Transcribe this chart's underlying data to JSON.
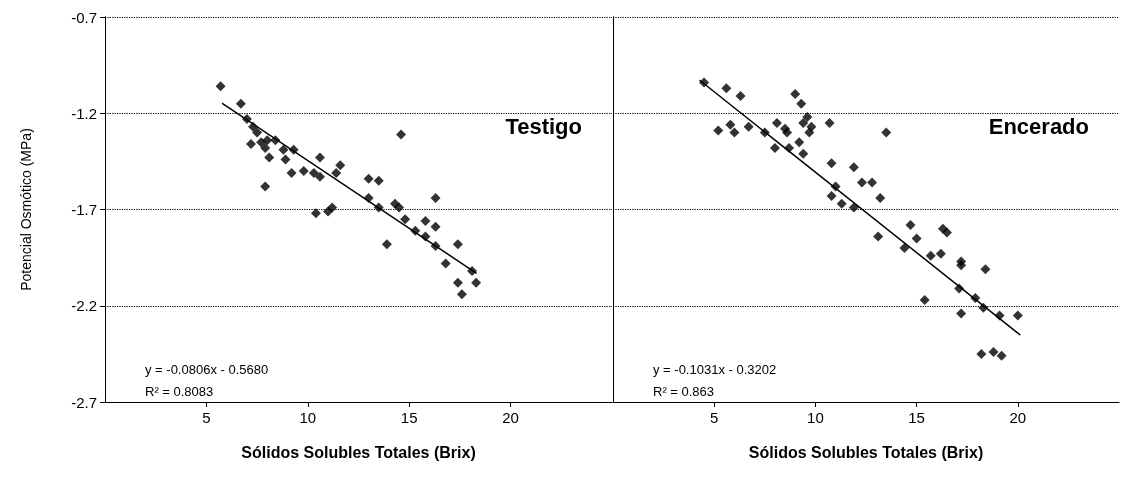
{
  "chart_data": [
    {
      "type": "scatter",
      "xlabel": "Sólidos Solubles Totales (Brix)",
      "ylabel": "Potencial Osmótico (MPa)",
      "xlim": [
        0,
        25
      ],
      "xticks": [
        5,
        10,
        15,
        20
      ],
      "ylim": [
        -2.7,
        -0.7
      ],
      "yticks": [
        -2.7,
        -2.2,
        -1.7,
        -1.2,
        -0.7
      ],
      "grid": "y",
      "marker": "diamond",
      "annotations": [
        "Testigo",
        "y = -0.0806x - 0.5680",
        "R² = 0.8083"
      ],
      "series": [
        {
          "color": "#000000",
          "x": [
            5.7,
            6.7,
            7.0,
            7.3,
            7.5,
            7.7,
            7.2,
            7.9,
            8.0,
            8.4,
            8.1,
            8.8,
            8.9,
            9.3,
            7.9,
            9.2,
            9.8,
            10.6,
            11.4,
            11.6,
            10.3,
            10.6,
            13.0,
            13.5,
            13.0,
            13.5,
            10.4,
            11.0,
            11.2,
            14.3,
            14.5,
            14.8,
            16.3,
            15.3,
            15.8,
            16.3,
            15.8,
            13.9,
            16.3,
            17.4,
            16.8,
            18.1,
            18.3,
            17.4,
            17.6,
            14.6
          ],
          "values": [
            -1.06,
            -1.15,
            -1.23,
            -1.27,
            -1.3,
            -1.35,
            -1.36,
            -1.38,
            -1.34,
            -1.34,
            -1.43,
            -1.39,
            -1.44,
            -1.39,
            -1.58,
            -1.51,
            -1.5,
            -1.43,
            -1.51,
            -1.47,
            -1.51,
            -1.53,
            -1.54,
            -1.55,
            -1.64,
            -1.69,
            -1.72,
            -1.71,
            -1.69,
            -1.67,
            -1.69,
            -1.75,
            -1.64,
            -1.81,
            -1.76,
            -1.79,
            -1.84,
            -1.88,
            -1.89,
            -1.88,
            -1.98,
            -2.02,
            -2.08,
            -2.08,
            -2.14,
            -1.31
          ]
        },
        {
          "type": "line",
          "color": "#000000",
          "marker": "none",
          "line_style": "solid",
          "x": [
            5.8,
            18.3
          ],
          "values": [
            -1.15,
            -2.03
          ]
        }
      ]
    },
    {
      "type": "scatter",
      "xlabel": "Sólidos Solubles Totales (Brix)",
      "xlim": [
        0,
        25
      ],
      "xticks": [
        5,
        10,
        15,
        20
      ],
      "ylim": [
        -2.7,
        -0.7
      ],
      "yticks": [
        -2.7,
        -2.2,
        -1.7,
        -1.2,
        -0.7
      ],
      "grid": "y",
      "marker": "diamond",
      "tick_labels": "x",
      "annotations": [
        "Encerado",
        "y = -0.1031x - 0.3202",
        "R² = 0.863"
      ],
      "series": [
        {
          "color": "#000000",
          "x": [
            4.5,
            5.6,
            6.3,
            5.2,
            5.8,
            6.0,
            6.7,
            9.0,
            9.3,
            8.1,
            8.5,
            8.6,
            7.5,
            8.0,
            8.7,
            9.2,
            9.4,
            9.4,
            9.6,
            9.8,
            9.7,
            10.7,
            13.5,
            10.8,
            11.9,
            11.0,
            10.8,
            11.3,
            11.9,
            12.8,
            12.3,
            13.2,
            13.1,
            14.7,
            15.0,
            14.4,
            15.7,
            16.2,
            16.3,
            16.5,
            17.2,
            17.2,
            18.4,
            17.1,
            15.4,
            17.9,
            18.3,
            17.2,
            19.1,
            20.0,
            18.2,
            18.8,
            19.2
          ],
          "values": [
            -1.04,
            -1.07,
            -1.11,
            -1.29,
            -1.26,
            -1.3,
            -1.27,
            -1.1,
            -1.15,
            -1.25,
            -1.28,
            -1.3,
            -1.3,
            -1.38,
            -1.38,
            -1.35,
            -1.41,
            -1.25,
            -1.22,
            -1.27,
            -1.3,
            -1.25,
            -1.3,
            -1.46,
            -1.48,
            -1.58,
            -1.63,
            -1.67,
            -1.69,
            -1.56,
            -1.56,
            -1.64,
            -1.84,
            -1.78,
            -1.85,
            -1.9,
            -1.94,
            -1.93,
            -1.8,
            -1.82,
            -1.97,
            -1.99,
            -2.01,
            -2.11,
            -2.17,
            -2.16,
            -2.21,
            -2.24,
            -2.25,
            -2.25,
            -2.45,
            -2.44,
            -2.46
          ]
        },
        {
          "type": "line",
          "color": "#000000",
          "marker": "none",
          "line_style": "solid",
          "x": [
            4.3,
            20.1
          ],
          "values": [
            -1.03,
            -2.35
          ]
        }
      ]
    }
  ]
}
